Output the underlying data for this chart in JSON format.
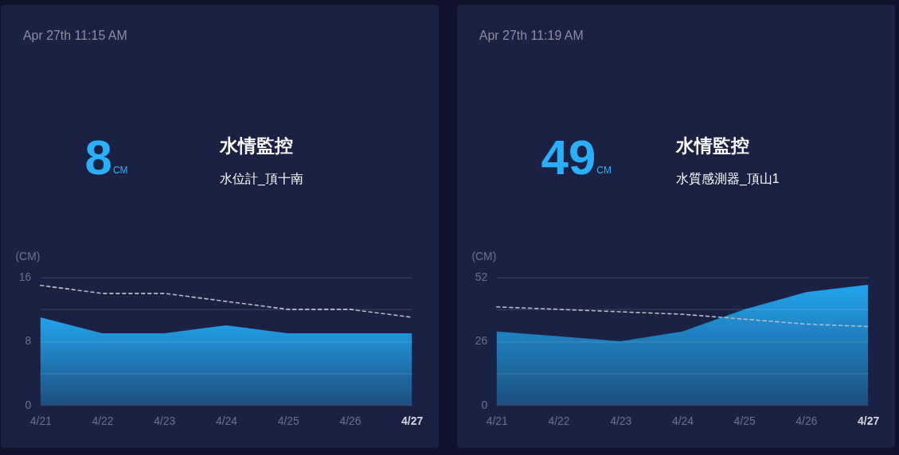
{
  "chart_data": [
    {
      "type": "area",
      "title": "水情監控",
      "subtitle": "水位計_頂十南",
      "ylabel": "(CM)",
      "annotations": [
        "Apr 27th 11:15 AM",
        "8",
        "CM"
      ],
      "categories": [
        "4/21",
        "4/22",
        "4/23",
        "4/24",
        "4/25",
        "4/26",
        "4/27"
      ],
      "series": [
        {
          "color": "#22aaf7",
          "values": [
            11,
            9,
            9,
            10,
            9,
            9,
            9
          ]
        },
        {
          "type": "line",
          "line_style": "dashed",
          "color": "#b9bccb",
          "values": [
            15,
            14,
            14,
            13,
            12,
            12,
            11
          ]
        }
      ],
      "ylim": [
        0,
        16
      ],
      "yticks": [
        0,
        {
          "value": 4,
          "label": null
        },
        8,
        {
          "value": 12,
          "label": null
        },
        16
      ],
      "grid": "y"
    },
    {
      "type": "area",
      "title": "水情監控",
      "subtitle": "水質感測器_頂山1",
      "ylabel": "(CM)",
      "annotations": [
        "Apr 27th 11:19 AM",
        "49",
        "CM"
      ],
      "categories": [
        "4/21",
        "4/22",
        "4/23",
        "4/24",
        "4/25",
        "4/26",
        "4/27"
      ],
      "series": [
        {
          "color": "#22aaf7",
          "values": [
            30,
            28,
            26,
            30,
            39,
            46,
            49
          ]
        },
        {
          "type": "line",
          "line_style": "dashed",
          "color": "#b9bccb",
          "values": [
            40,
            39,
            38,
            37,
            35,
            33,
            32
          ]
        }
      ],
      "ylim": [
        0,
        52
      ],
      "yticks": [
        0,
        {
          "value": 13,
          "label": null
        },
        26,
        {
          "value": 39,
          "label": null
        },
        52
      ],
      "grid": "y"
    }
  ]
}
